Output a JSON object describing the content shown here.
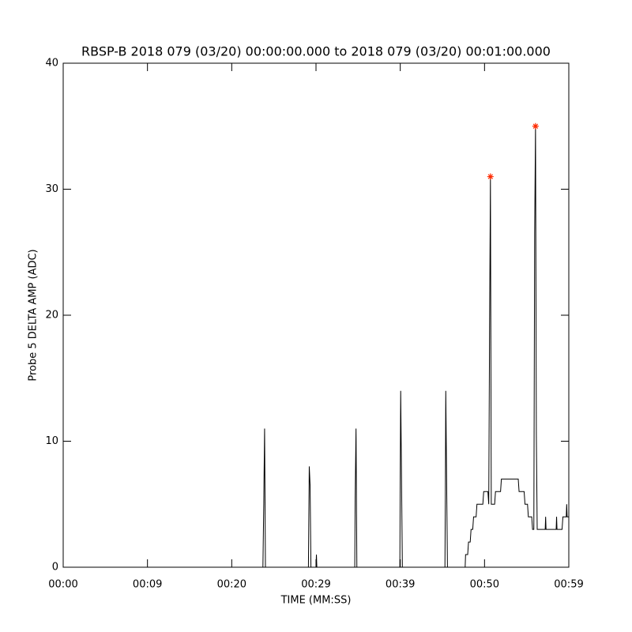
{
  "chart_data": {
    "type": "line",
    "title": "RBSP-B 2018 079 (03/20) 00:00:00.000 to 2018 079 (03/20) 00:01:00.000",
    "x_label": "TIME (MM:SS)",
    "y_label": "Probe 5 DELTA AMP (ADC)",
    "xlim": [
      0,
      60
    ],
    "xticks": [
      {
        "value": 0,
        "label": "00:00"
      },
      {
        "value": 10,
        "label": "00:09"
      },
      {
        "value": 20,
        "label": "00:20"
      },
      {
        "value": 30,
        "label": "00:29"
      },
      {
        "value": 40,
        "label": "00:39"
      },
      {
        "value": 50,
        "label": "00:50"
      },
      {
        "value": 60,
        "label": "00:59"
      }
    ],
    "ylim": [
      0,
      40
    ],
    "yticks": [
      0,
      10,
      20,
      30,
      40
    ],
    "series": [
      {
        "color": "#000000",
        "marker": "none",
        "x": [
          0,
          23.7,
          23.8,
          23.9,
          24.0,
          29.1,
          29.2,
          29.3,
          29.4,
          30.0,
          30.05,
          30.1,
          34.6,
          34.65,
          34.75,
          34.85,
          39.95,
          40.0,
          40.05,
          40.15,
          40.25,
          45.3,
          45.35,
          45.4,
          45.5,
          45.6,
          47.7,
          47.75,
          48.0,
          48.1,
          48.3,
          48.4,
          48.6,
          48.7,
          49.0,
          49.1,
          49.8,
          49.9,
          50.4,
          50.5,
          50.6,
          50.7,
          50.8,
          51.2,
          51.3,
          51.9,
          52.0,
          54.0,
          54.1,
          54.7,
          54.8,
          55.1,
          55.2,
          55.6,
          55.7,
          55.85,
          55.95,
          56.05,
          56.15,
          56.25,
          57.2,
          57.25,
          57.3,
          58.5,
          58.55,
          58.6,
          59.2,
          59.3,
          59.7,
          59.75,
          59.8,
          60
        ],
        "values": [
          0,
          0,
          5,
          11,
          0,
          0,
          8,
          6.5,
          0,
          0,
          1,
          0,
          0,
          5.5,
          11,
          0,
          0,
          7.5,
          14,
          7,
          0,
          0,
          5.5,
          14,
          7,
          0,
          0,
          1,
          1,
          2,
          2,
          3,
          3,
          4,
          4,
          5,
          5,
          6,
          6,
          5,
          19,
          31,
          5,
          5,
          6,
          6,
          7,
          7,
          6,
          6,
          5,
          5,
          4,
          4,
          3,
          3,
          26.5,
          35,
          10.5,
          3,
          3,
          4,
          3,
          3,
          4,
          3,
          3,
          4,
          4,
          5,
          4,
          4
        ]
      },
      {
        "color": "#ff2a00",
        "marker": "asterisk",
        "x": [
          50.7,
          56.05
        ],
        "values": [
          31,
          35
        ]
      }
    ]
  }
}
